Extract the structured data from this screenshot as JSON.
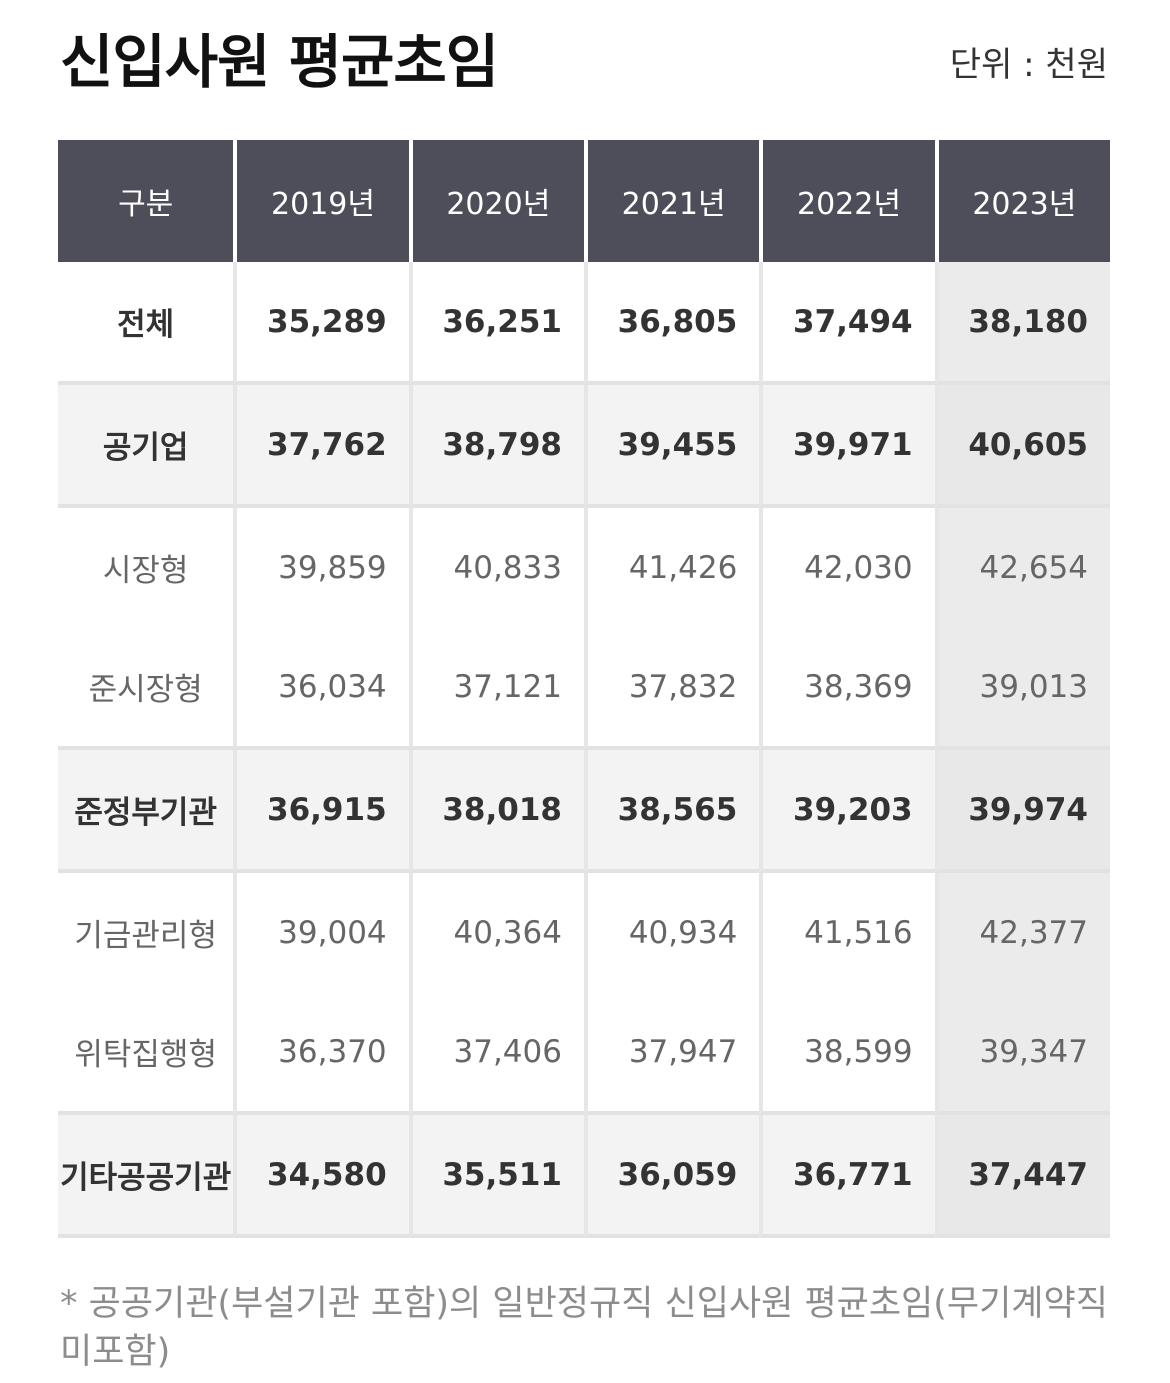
{
  "title": "신입사원 평균초임",
  "unit": "단위 : 천원",
  "table": {
    "headers": [
      "구분",
      "2019년",
      "2020년",
      "2021년",
      "2022년",
      "2023년"
    ],
    "rows": [
      {
        "label": "전체",
        "values": [
          "35,289",
          "36,251",
          "36,805",
          "37,494",
          "38,180"
        ]
      },
      {
        "label": "공기업",
        "values": [
          "37,762",
          "38,798",
          "39,455",
          "39,971",
          "40,605"
        ]
      },
      {
        "label": "시장형",
        "values": [
          "39,859",
          "40,833",
          "41,426",
          "42,030",
          "42,654"
        ]
      },
      {
        "label": "준시장형",
        "values": [
          "36,034",
          "37,121",
          "37,832",
          "38,369",
          "39,013"
        ]
      },
      {
        "label": "준정부기관",
        "values": [
          "36,915",
          "38,018",
          "38,565",
          "39,203",
          "39,974"
        ]
      },
      {
        "label": "기금관리형",
        "values": [
          "39,004",
          "40,364",
          "40,934",
          "41,516",
          "42,377"
        ]
      },
      {
        "label": "위탁집행형",
        "values": [
          "36,370",
          "37,406",
          "37,947",
          "38,599",
          "39,347"
        ]
      },
      {
        "label": "기타공공기관",
        "values": [
          "34,580",
          "35,511",
          "36,059",
          "36,771",
          "37,447"
        ]
      }
    ]
  },
  "footnote": "* 공공기관(부설기관 포함)의 일반정규직 신입사원 평균초임(무기계약직 미포함)",
  "colors": {
    "header_bg": "#4e4e5a",
    "summary_row_bg": "#f3f3f3",
    "last_column_bg": "#ebebeb"
  }
}
